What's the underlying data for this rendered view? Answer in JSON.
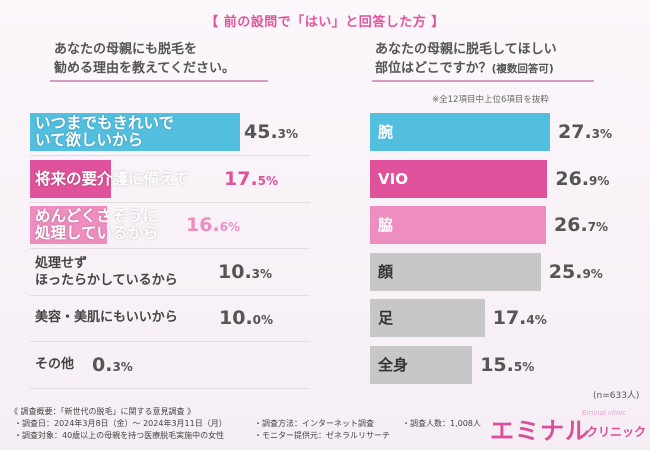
{
  "header": "【 前の設問で「はい」と回答した方 】",
  "left": {
    "question_line1": "あなたの母親にも脱毛を",
    "question_line2": "勧める理由を教えてください。"
  },
  "right": {
    "question_line1": "あなたの母親に脱毛してほしい",
    "question_line2": "部位はどこですか？",
    "question_suffix": "(複数回答可)",
    "note": "※全12項目中上位6項目を抜粋"
  },
  "n_note": "(n=633人)",
  "colors": {
    "cyan": "#53bfdf",
    "magenta": "#e0529b",
    "pink": "#ee8ec0",
    "gray": "#c7c7c7",
    "accent": "#e0559b"
  },
  "chart_data": [
    {
      "type": "bar",
      "orientation": "horizontal",
      "categories": [
        "いつまでもきれいでいて欲しいから",
        "将来の要介護に備えて",
        "めんどくさそうに処理しているから",
        "処理せずほったらかしているから",
        "美容・美肌にもいいから",
        "その他"
      ],
      "values": [
        45.3,
        17.5,
        16.6,
        10.3,
        10.0,
        0.3
      ],
      "labels": [
        [
          "いつまでもきれいで",
          "いて欲しいから"
        ],
        [
          "将来の要介護に備えて"
        ],
        [
          "めんどくさそうに",
          "処理しているから"
        ],
        [
          "処理せず",
          "ほったらかしているから"
        ],
        [
          "美容・美肌にもいいから"
        ],
        [
          "その他"
        ]
      ],
      "value_labels": [
        {
          "int": "45.",
          "dec": "3%"
        },
        {
          "int": "17.",
          "dec": "5%"
        },
        {
          "int": "16.",
          "dec": "6%"
        },
        {
          "int": "10.",
          "dec": "3%"
        },
        {
          "int": "10.",
          "dec": "0%"
        },
        {
          "int": "0.",
          "dec": "3%"
        }
      ],
      "bar_colors": [
        "cyan",
        "magenta",
        "pink",
        "none",
        "none",
        "none"
      ]
    },
    {
      "type": "bar",
      "orientation": "horizontal",
      "categories": [
        "腕",
        "VIO",
        "脇",
        "顔",
        "足",
        "全身"
      ],
      "values": [
        27.3,
        26.9,
        26.7,
        25.9,
        17.4,
        15.5
      ],
      "labels": [
        [
          "腕"
        ],
        [
          "VIO"
        ],
        [
          "脇"
        ],
        [
          "顔"
        ],
        [
          "足"
        ],
        [
          "全身"
        ]
      ],
      "value_labels": [
        {
          "int": "27.",
          "dec": "3%"
        },
        {
          "int": "26.",
          "dec": "9%"
        },
        {
          "int": "26.",
          "dec": "7%"
        },
        {
          "int": "25.",
          "dec": "9%"
        },
        {
          "int": "17.",
          "dec": "4%"
        },
        {
          "int": "15.",
          "dec": "5%"
        }
      ],
      "bar_colors": [
        "cyan",
        "magenta",
        "pink",
        "gray",
        "gray",
        "gray"
      ]
    }
  ],
  "footer": {
    "title": "《 調査概要：「新世代の脱毛」に関する意見調査 》",
    "date": "・調査日：2024年3月8日（金）～ 2024年3月11日（月）",
    "target": "・調査対象：40歳以上の母親を持つ医療脱毛実施中の女性",
    "method": "・調査方法：インターネット調査",
    "count": "・調査人数：1,008人",
    "provider": "・モニター提供元：ゼネラルリサーチ"
  },
  "logo": {
    "main": "エミナル",
    "sub": "クリニック",
    "tiny": "Eminal clinic"
  }
}
